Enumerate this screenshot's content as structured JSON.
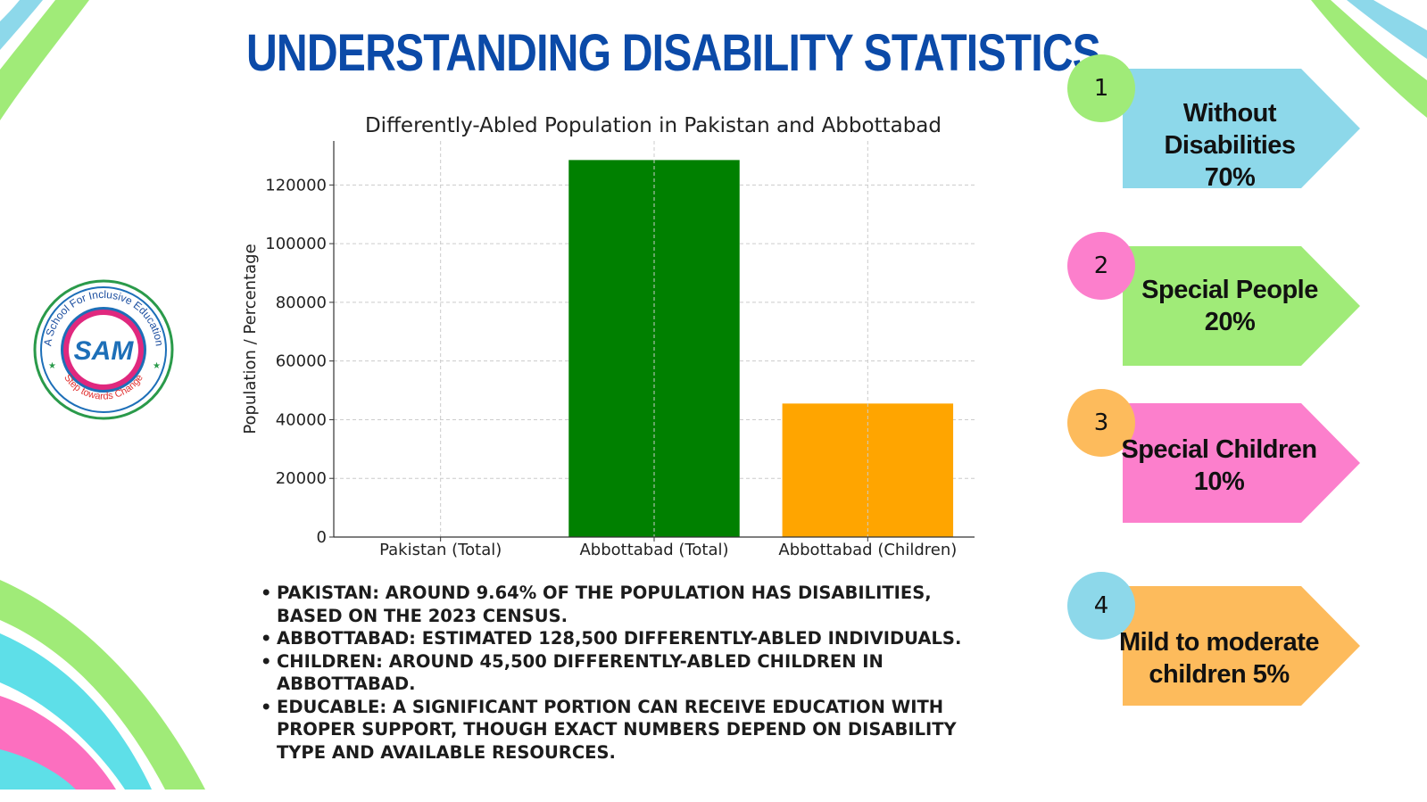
{
  "title": "UNDERSTANDING DISABILITY STATISTICS",
  "chart_data": {
    "type": "bar",
    "title": "Differently-Abled Population in Pakistan and Abbottabad",
    "ylabel": "Population / Percentage",
    "xlabel": "",
    "categories": [
      "Pakistan (Total)",
      "Abbottabad (Total)",
      "Abbottabad (Children)"
    ],
    "values": [
      9.64,
      128500,
      45500
    ],
    "colors": [
      "#1f77b4",
      "#008000",
      "#ffa500"
    ],
    "ylim": [
      0,
      135000
    ],
    "yticks": [
      0,
      20000,
      40000,
      60000,
      80000,
      100000,
      120000
    ],
    "grid": true
  },
  "bullets": [
    "PAKISTAN: AROUND 9.64% OF THE POPULATION HAS DISABILITIES, BASED ON THE 2023 CENSUS.",
    "ABBOTTABAD: ESTIMATED 128,500 DIFFERENTLY-ABLED INDIVIDUALS.",
    "CHILDREN: AROUND 45,500 DIFFERENTLY-ABLED CHILDREN IN ABBOTTABAD.",
    "EDUCABLE: A SIGNIFICANT PORTION CAN RECEIVE EDUCATION WITH PROPER SUPPORT, THOUGH EXACT NUMBERS DEPEND ON DISABILITY TYPE AND AVAILABLE RESOURCES."
  ],
  "tags": [
    {
      "number": "1",
      "line1": "Without Disabilities",
      "line2": "70%",
      "circle_color": "#a0eb78",
      "arrow_color": "#8dd8ea"
    },
    {
      "number": "2",
      "line1": "Special People",
      "line2": "20%",
      "circle_color": "#fc7fcc",
      "arrow_color": "#a0eb78"
    },
    {
      "number": "3",
      "line1": "Special Children",
      "line2": "10%",
      "circle_color": "#fdbb5c",
      "arrow_color": "#fc7fcc"
    },
    {
      "number": "4",
      "line1": "Mild to moderate",
      "line2": "children 5%",
      "circle_color": "#8dd8ea",
      "arrow_color": "#fdbb5c"
    }
  ],
  "logo": {
    "arc_top": "A School For Inclusive Education",
    "arc_bottom": "Step towards Change",
    "monogram": "SAM"
  },
  "colors": {
    "title": "#0b4aa8",
    "green": "#a0eb78",
    "blue": "#8dd8ea",
    "pink": "#fc7fcc",
    "orange": "#fdbb5c"
  }
}
